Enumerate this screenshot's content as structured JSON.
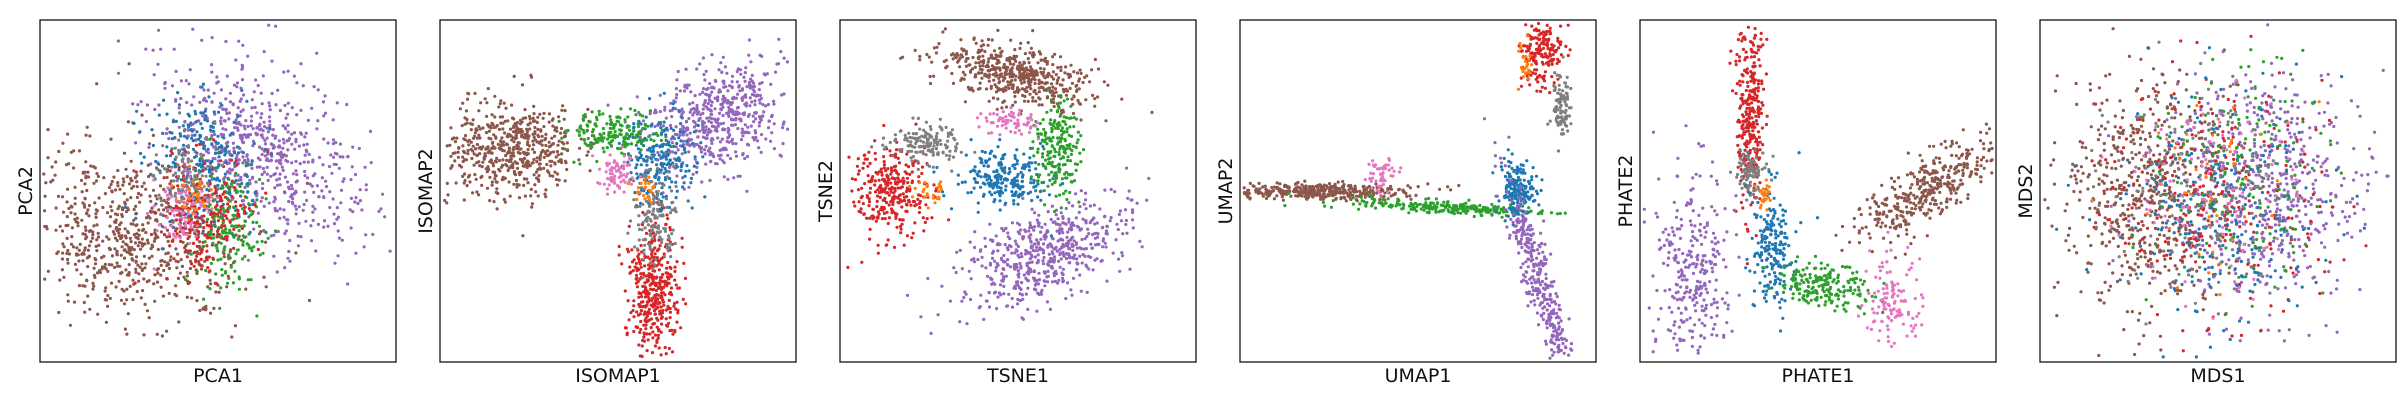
{
  "chart_data": [
    {
      "type": "scatter",
      "xlabel": "PCA1",
      "ylabel": "PCA2",
      "grid": false,
      "legend": "none",
      "ticks": "hidden",
      "clusters": [
        {
          "color": "#8c564b",
          "cx": 0.25,
          "cy": 0.62,
          "sx": 0.17,
          "sy": 0.12,
          "rot": 0.2,
          "n": 700
        },
        {
          "color": "#9467bd",
          "cx": 0.62,
          "cy": 0.38,
          "sx": 0.17,
          "sy": 0.1,
          "rot": 0.75,
          "n": 650
        },
        {
          "color": "#1f77b4",
          "cx": 0.45,
          "cy": 0.42,
          "sx": 0.07,
          "sy": 0.1,
          "rot": 0.0,
          "n": 260
        },
        {
          "color": "#d62728",
          "cx": 0.47,
          "cy": 0.58,
          "sx": 0.06,
          "sy": 0.09,
          "rot": 0.0,
          "n": 260
        },
        {
          "color": "#2ca02c",
          "cx": 0.53,
          "cy": 0.62,
          "sx": 0.05,
          "sy": 0.09,
          "rot": 0.0,
          "n": 160
        },
        {
          "color": "#e377c2",
          "cx": 0.4,
          "cy": 0.55,
          "sx": 0.04,
          "sy": 0.05,
          "rot": 0.0,
          "n": 90
        },
        {
          "color": "#7f7f7f",
          "cx": 0.4,
          "cy": 0.45,
          "sx": 0.04,
          "sy": 0.06,
          "rot": 0.0,
          "n": 90
        },
        {
          "color": "#ff7f0e",
          "cx": 0.43,
          "cy": 0.52,
          "sx": 0.03,
          "sy": 0.04,
          "rot": 0.0,
          "n": 30
        }
      ]
    },
    {
      "type": "scatter",
      "xlabel": "ISOMAP1",
      "ylabel": "ISOMAP2",
      "grid": false,
      "legend": "none",
      "ticks": "hidden",
      "clusters": [
        {
          "color": "#8c564b",
          "cx": 0.2,
          "cy": 0.38,
          "sx": 0.09,
          "sy": 0.07,
          "rot": 0.0,
          "n": 550
        },
        {
          "color": "#9467bd",
          "cx": 0.78,
          "cy": 0.28,
          "sx": 0.11,
          "sy": 0.07,
          "rot": -0.55,
          "n": 550
        },
        {
          "color": "#d62728",
          "cx": 0.6,
          "cy": 0.78,
          "sx": 0.035,
          "sy": 0.1,
          "rot": 0.0,
          "n": 400
        },
        {
          "color": "#1f77b4",
          "cx": 0.62,
          "cy": 0.42,
          "sx": 0.05,
          "sy": 0.07,
          "rot": 0.0,
          "n": 220
        },
        {
          "color": "#2ca02c",
          "cx": 0.48,
          "cy": 0.33,
          "sx": 0.07,
          "sy": 0.03,
          "rot": 0.0,
          "n": 180
        },
        {
          "color": "#7f7f7f",
          "cx": 0.6,
          "cy": 0.57,
          "sx": 0.03,
          "sy": 0.07,
          "rot": 0.0,
          "n": 140
        },
        {
          "color": "#e377c2",
          "cx": 0.5,
          "cy": 0.45,
          "sx": 0.03,
          "sy": 0.03,
          "rot": 0.0,
          "n": 70
        },
        {
          "color": "#ff7f0e",
          "cx": 0.58,
          "cy": 0.5,
          "sx": 0.02,
          "sy": 0.02,
          "rot": 0.0,
          "n": 25
        }
      ]
    },
    {
      "type": "scatter",
      "xlabel": "TSNE1",
      "ylabel": "TSNE2",
      "grid": false,
      "legend": "none",
      "ticks": "hidden",
      "clusters": [
        {
          "color": "#8c564b",
          "cx": 0.5,
          "cy": 0.16,
          "sx": 0.11,
          "sy": 0.04,
          "rot": 0.25,
          "n": 500
        },
        {
          "color": "#9467bd",
          "cx": 0.58,
          "cy": 0.68,
          "sx": 0.13,
          "sy": 0.06,
          "rot": -0.45,
          "n": 550
        },
        {
          "color": "#d62728",
          "cx": 0.14,
          "cy": 0.5,
          "sx": 0.05,
          "sy": 0.07,
          "rot": 0.0,
          "n": 300
        },
        {
          "color": "#7f7f7f",
          "cx": 0.24,
          "cy": 0.36,
          "sx": 0.05,
          "sy": 0.03,
          "rot": 0.0,
          "n": 150
        },
        {
          "color": "#1f77b4",
          "cx": 0.46,
          "cy": 0.46,
          "sx": 0.07,
          "sy": 0.04,
          "rot": 0.0,
          "n": 230
        },
        {
          "color": "#2ca02c",
          "cx": 0.61,
          "cy": 0.38,
          "sx": 0.03,
          "sy": 0.07,
          "rot": 0.0,
          "n": 200
        },
        {
          "color": "#e377c2",
          "cx": 0.48,
          "cy": 0.3,
          "sx": 0.04,
          "sy": 0.02,
          "rot": 0.0,
          "n": 70
        },
        {
          "color": "#ff7f0e",
          "cx": 0.25,
          "cy": 0.5,
          "sx": 0.02,
          "sy": 0.02,
          "rot": 0.0,
          "n": 25
        }
      ]
    },
    {
      "type": "scatter",
      "xlabel": "UMAP1",
      "ylabel": "UMAP2",
      "grid": false,
      "legend": "none",
      "ticks": "hidden",
      "clusters": [
        {
          "color": "#8c564b",
          "cx": 0.22,
          "cy": 0.5,
          "sx": 0.13,
          "sy": 0.012,
          "rot": 0.0,
          "n": 400
        },
        {
          "color": "#2ca02c",
          "cx": 0.6,
          "cy": 0.55,
          "sx": 0.14,
          "sy": 0.01,
          "rot": 0.06,
          "n": 250
        },
        {
          "color": "#1f77b4",
          "cx": 0.78,
          "cy": 0.5,
          "sx": 0.025,
          "sy": 0.04,
          "rot": 0.0,
          "n": 180
        },
        {
          "color": "#9467bd",
          "cx": 0.84,
          "cy": 0.77,
          "sx": 0.02,
          "sy": 0.17,
          "rot": -0.3,
          "n": 350
        },
        {
          "color": "#d62728",
          "cx": 0.85,
          "cy": 0.1,
          "sx": 0.03,
          "sy": 0.05,
          "rot": 0.0,
          "n": 180
        },
        {
          "color": "#7f7f7f",
          "cx": 0.9,
          "cy": 0.26,
          "sx": 0.012,
          "sy": 0.05,
          "rot": 0.0,
          "n": 90
        },
        {
          "color": "#e377c2",
          "cx": 0.4,
          "cy": 0.45,
          "sx": 0.02,
          "sy": 0.03,
          "rot": 0.0,
          "n": 50
        },
        {
          "color": "#ff7f0e",
          "cx": 0.8,
          "cy": 0.14,
          "sx": 0.012,
          "sy": 0.03,
          "rot": 0.0,
          "n": 25
        }
      ]
    },
    {
      "type": "scatter",
      "xlabel": "PHATE1",
      "ylabel": "PHATE2",
      "grid": false,
      "legend": "none",
      "ticks": "hidden",
      "clusters": [
        {
          "color": "#d62728",
          "cx": 0.31,
          "cy": 0.25,
          "sx": 0.02,
          "sy": 0.14,
          "rot": 0.0,
          "n": 300
        },
        {
          "color": "#7f7f7f",
          "cx": 0.31,
          "cy": 0.45,
          "sx": 0.02,
          "sy": 0.03,
          "rot": 0.0,
          "n": 100
        },
        {
          "color": "#1f77b4",
          "cx": 0.37,
          "cy": 0.66,
          "sx": 0.03,
          "sy": 0.09,
          "rot": 0.0,
          "n": 200
        },
        {
          "color": "#9467bd",
          "cx": 0.15,
          "cy": 0.73,
          "sx": 0.05,
          "sy": 0.15,
          "rot": 0.0,
          "n": 300
        },
        {
          "color": "#2ca02c",
          "cx": 0.52,
          "cy": 0.78,
          "sx": 0.07,
          "sy": 0.03,
          "rot": 0.2,
          "n": 200
        },
        {
          "color": "#8c564b",
          "cx": 0.8,
          "cy": 0.5,
          "sx": 0.12,
          "sy": 0.04,
          "rot": -0.6,
          "n": 380
        },
        {
          "color": "#e377c2",
          "cx": 0.71,
          "cy": 0.82,
          "sx": 0.04,
          "sy": 0.06,
          "rot": 0.0,
          "n": 120
        },
        {
          "color": "#ff7f0e",
          "cx": 0.35,
          "cy": 0.52,
          "sx": 0.012,
          "sy": 0.02,
          "rot": 0.0,
          "n": 25
        }
      ]
    },
    {
      "type": "scatter",
      "xlabel": "MDS1",
      "ylabel": "MDS2",
      "grid": false,
      "legend": "none",
      "ticks": "hidden",
      "clusters": [
        {
          "color": "#8c564b",
          "cx": 0.3,
          "cy": 0.5,
          "sx": 0.12,
          "sy": 0.17,
          "rot": 0.0,
          "n": 600
        },
        {
          "color": "#9467bd",
          "cx": 0.63,
          "cy": 0.5,
          "sx": 0.14,
          "sy": 0.17,
          "rot": 0.0,
          "n": 600
        },
        {
          "color": "#d62728",
          "cx": 0.5,
          "cy": 0.5,
          "sx": 0.15,
          "sy": 0.18,
          "rot": 0.0,
          "n": 260
        },
        {
          "color": "#1f77b4",
          "cx": 0.5,
          "cy": 0.55,
          "sx": 0.15,
          "sy": 0.17,
          "rot": 0.0,
          "n": 260
        },
        {
          "color": "#2ca02c",
          "cx": 0.55,
          "cy": 0.45,
          "sx": 0.12,
          "sy": 0.16,
          "rot": 0.0,
          "n": 180
        },
        {
          "color": "#7f7f7f",
          "cx": 0.45,
          "cy": 0.5,
          "sx": 0.13,
          "sy": 0.17,
          "rot": 0.0,
          "n": 140
        },
        {
          "color": "#e377c2",
          "cx": 0.5,
          "cy": 0.5,
          "sx": 0.12,
          "sy": 0.15,
          "rot": 0.0,
          "n": 100
        },
        {
          "color": "#ff7f0e",
          "cx": 0.5,
          "cy": 0.5,
          "sx": 0.12,
          "sy": 0.15,
          "rot": 0.0,
          "n": 40
        }
      ]
    }
  ]
}
